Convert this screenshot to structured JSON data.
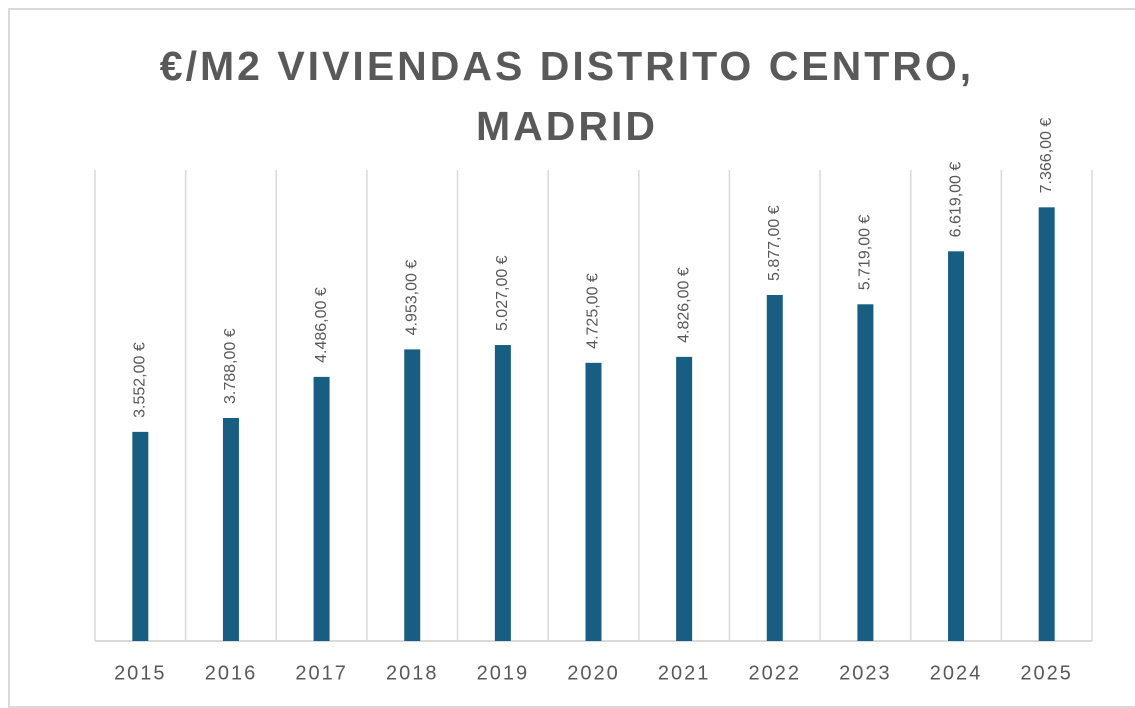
{
  "chart_data": {
    "type": "bar",
    "title": "€/M2 VIVIENDAS DISTRITO CENTRO, MADRID",
    "categories": [
      "2015",
      "2016",
      "2017",
      "2018",
      "2019",
      "2020",
      "2021",
      "2022",
      "2023",
      "2024",
      "2025"
    ],
    "values": [
      3552,
      3788,
      4486,
      4953,
      5027,
      4725,
      4826,
      5877,
      5719,
      6619,
      7366
    ],
    "value_labels": [
      "3.552,00 €",
      "3.788,00 €",
      "4.486,00 €",
      "4.953,00 €",
      "5.027,00 €",
      "4.725,00 €",
      "4.826,00 €",
      "5.877,00 €",
      "5.719,00 €",
      "6.619,00 €",
      "7.366,00 €"
    ],
    "color": "#175e82",
    "ylim": [
      0,
      8000
    ],
    "grid": true
  }
}
